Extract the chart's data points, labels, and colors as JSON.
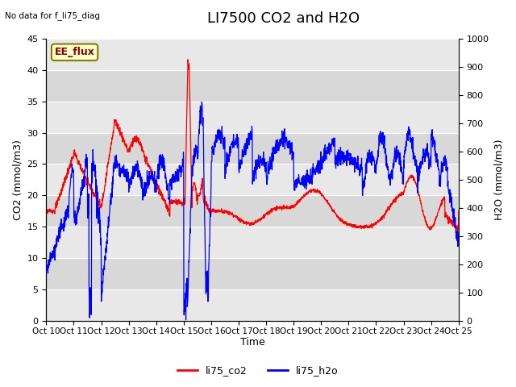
{
  "title": "LI7500 CO2 and H2O",
  "top_left_text": "No data for f_li75_diag",
  "annotation_text": "EE_flux",
  "xlabel": "Time",
  "ylabel_left": "CO2 (mmol/m3)",
  "ylabel_right": "H2O (mmol/m3)",
  "xlim": [
    0,
    15
  ],
  "ylim_left": [
    0,
    45
  ],
  "ylim_right": [
    0,
    1000
  ],
  "xtick_positions": [
    0,
    1,
    2,
    3,
    4,
    5,
    6,
    7,
    8,
    9,
    10,
    11,
    12,
    13,
    14,
    15
  ],
  "xtick_labels": [
    "Oct 10",
    "Oct 11",
    "Oct 12",
    "Oct 13",
    "Oct 14",
    "Oct 15",
    "Oct 16",
    "Oct 17",
    "Oct 18",
    "Oct 19",
    "Oct 20",
    "Oct 21",
    "Oct 22",
    "Oct 23",
    "Oct 24",
    "Oct 25"
  ],
  "yticks_left": [
    0,
    5,
    10,
    15,
    20,
    25,
    30,
    35,
    40,
    45
  ],
  "yticks_right": [
    0,
    100,
    200,
    300,
    400,
    500,
    600,
    700,
    800,
    900,
    1000
  ],
  "legend_labels": [
    "li75_co2",
    "li75_h2o"
  ],
  "legend_colors": [
    "red",
    "blue"
  ],
  "co2_color": "red",
  "h2o_color": "blue",
  "plot_bg_color": "#f0f0f0",
  "band_colors": [
    "#e8e8e8",
    "#d8d8d8"
  ],
  "title_fontsize": 13,
  "label_fontsize": 9,
  "tick_fontsize": 8,
  "annotation_color": "#8b0000",
  "annotation_bg": "#ffffcc",
  "annotation_edge": "#808000"
}
